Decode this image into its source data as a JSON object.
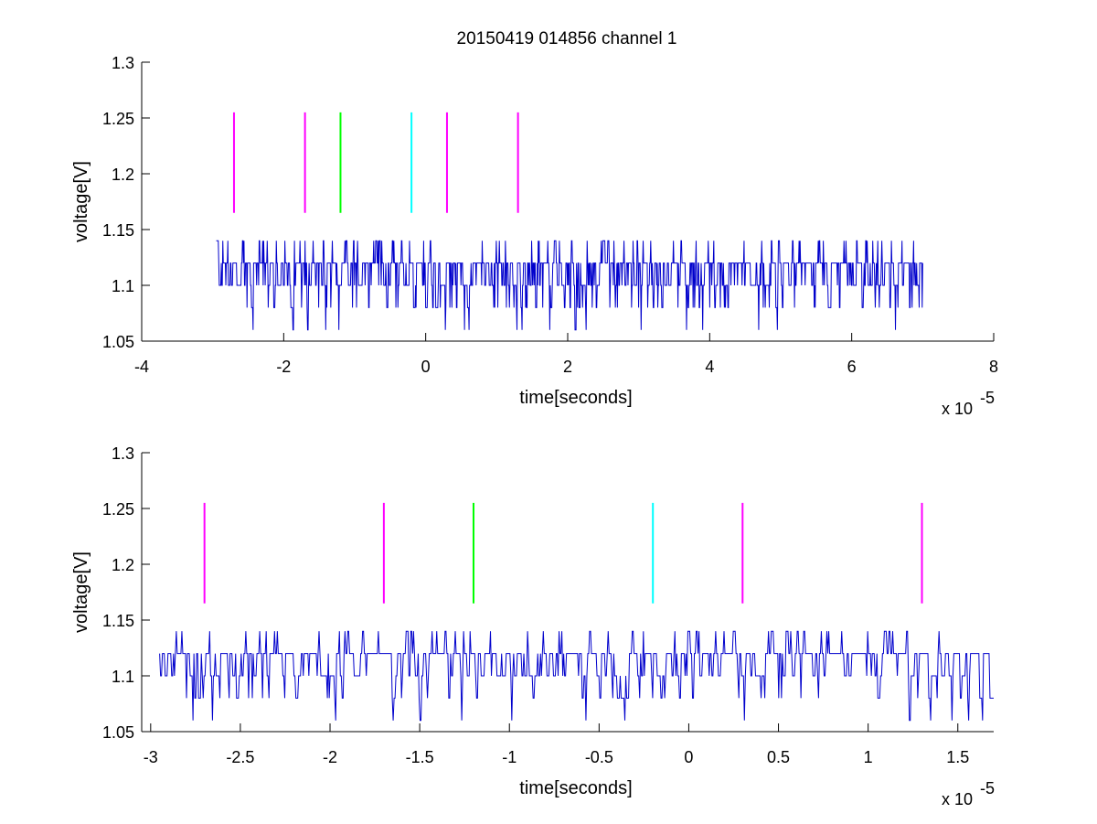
{
  "figure": {
    "title": "20150419 014856 channel 1"
  },
  "chart_data": [
    {
      "type": "line",
      "title": "20150419 014856 channel 1",
      "xlabel": "time[seconds]",
      "ylabel": "voltage[V]",
      "x_multiplier_label": "x 10",
      "x_multiplier_exponent": "-5",
      "xlim": [
        -4,
        8
      ],
      "ylim": [
        1.05,
        1.3
      ],
      "x_ticks": [
        -4,
        -2,
        0,
        2,
        4,
        6,
        8
      ],
      "x_tick_labels": [
        "-4",
        "-2",
        "0",
        "2",
        "4",
        "6",
        "8"
      ],
      "y_ticks": [
        1.05,
        1.1,
        1.15,
        1.2,
        1.25,
        1.3
      ],
      "y_tick_labels": [
        "1.05",
        "1.1",
        "1.15",
        "1.2",
        "1.25",
        "1.3"
      ],
      "grid": false,
      "signal": {
        "color": "#0000cc",
        "x_range": [
          -2.95,
          7.0
        ],
        "levels": [
          1.06,
          1.08,
          1.1,
          1.12,
          1.14
        ],
        "description_values": "quantized noisy voltage trace between 1.06 and 1.14 V"
      },
      "markers": [
        {
          "x": -2.7,
          "y_range": [
            1.165,
            1.255
          ],
          "color": "#ff00ff"
        },
        {
          "x": -1.7,
          "y_range": [
            1.165,
            1.255
          ],
          "color": "#ff00ff"
        },
        {
          "x": -1.2,
          "y_range": [
            1.165,
            1.255
          ],
          "color": "#00ff00"
        },
        {
          "x": -0.2,
          "y_range": [
            1.165,
            1.255
          ],
          "color": "#00ffff"
        },
        {
          "x": 0.3,
          "y_range": [
            1.165,
            1.255
          ],
          "color": "#ff00ff"
        },
        {
          "x": 1.3,
          "y_range": [
            1.165,
            1.255
          ],
          "color": "#ff00ff"
        }
      ]
    },
    {
      "type": "line",
      "title": "",
      "xlabel": "time[seconds]",
      "ylabel": "voltage[V]",
      "x_multiplier_label": "x 10",
      "x_multiplier_exponent": "-5",
      "xlim": [
        -3.05,
        1.7
      ],
      "ylim": [
        1.05,
        1.3
      ],
      "x_ticks": [
        -3,
        -2.5,
        -2,
        -1.5,
        -1,
        -0.5,
        0,
        0.5,
        1,
        1.5
      ],
      "x_tick_labels": [
        "-3",
        "-2.5",
        "-2",
        "-1.5",
        "-1",
        "-0.5",
        "0",
        "0.5",
        "1",
        "1.5"
      ],
      "y_ticks": [
        1.05,
        1.1,
        1.15,
        1.2,
        1.25,
        1.3
      ],
      "y_tick_labels": [
        "1.05",
        "1.1",
        "1.15",
        "1.2",
        "1.25",
        "1.3"
      ],
      "grid": false,
      "signal": {
        "color": "#0000cc",
        "x_range": [
          -2.95,
          1.7
        ],
        "levels": [
          1.06,
          1.08,
          1.1,
          1.12,
          1.14
        ]
      },
      "markers": [
        {
          "x": -2.7,
          "y_range": [
            1.165,
            1.255
          ],
          "color": "#ff00ff"
        },
        {
          "x": -1.7,
          "y_range": [
            1.165,
            1.255
          ],
          "color": "#ff00ff"
        },
        {
          "x": -1.2,
          "y_range": [
            1.165,
            1.255
          ],
          "color": "#00ff00"
        },
        {
          "x": -0.2,
          "y_range": [
            1.165,
            1.255
          ],
          "color": "#00ffff"
        },
        {
          "x": 0.3,
          "y_range": [
            1.165,
            1.255
          ],
          "color": "#ff00ff"
        },
        {
          "x": 1.3,
          "y_range": [
            1.165,
            1.255
          ],
          "color": "#ff00ff"
        }
      ]
    }
  ]
}
